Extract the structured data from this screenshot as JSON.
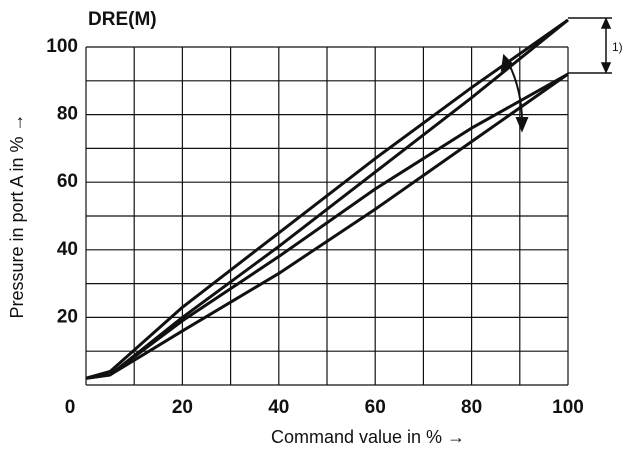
{
  "chart_data": {
    "type": "line",
    "title": "DRE(M)",
    "xlabel": "Command value in % →",
    "ylabel": "Pressure in port A in % →",
    "annotation": "1)",
    "xlim": [
      0,
      100
    ],
    "ylim": [
      0,
      100
    ],
    "xticks": [
      0,
      20,
      40,
      60,
      80,
      100
    ],
    "yticks": [
      20,
      40,
      60,
      80,
      100
    ],
    "xgrid": [
      0,
      10,
      20,
      30,
      40,
      50,
      60,
      70,
      80,
      90,
      100
    ],
    "ygrid": [
      0,
      10,
      20,
      30,
      40,
      50,
      60,
      70,
      80,
      90,
      100
    ],
    "grid": true,
    "x": [
      0,
      5,
      20,
      40,
      60,
      80,
      100
    ],
    "series": [
      {
        "color": "#111111",
        "values": [
          2,
          4,
          23,
          45,
          67,
          88,
          108
        ]
      },
      {
        "color": "#111111",
        "values": [
          2,
          3,
          20,
          41,
          63,
          85,
          108
        ]
      },
      {
        "color": "#111111",
        "values": [
          2,
          3,
          19,
          38,
          58,
          76,
          92
        ]
      },
      {
        "color": "#111111",
        "values": [
          2,
          3,
          16,
          33,
          52,
          72,
          92
        ]
      }
    ]
  }
}
